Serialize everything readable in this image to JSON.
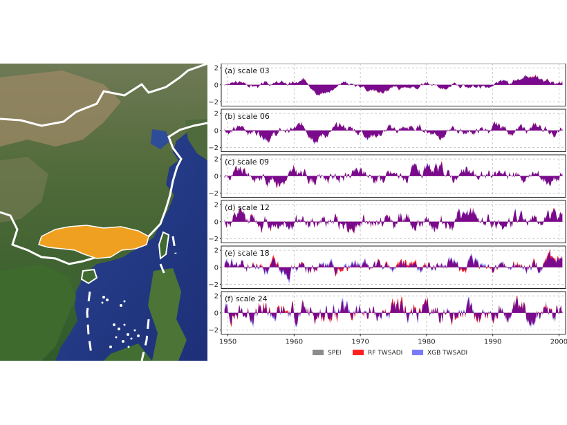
{
  "map": {
    "region_color": "#f0a020",
    "land_color": "#4c6e3a",
    "desert_color": "#8a7a5c",
    "sea_color": "#2a3f8a",
    "boundary_color": "#ffffff"
  },
  "chart_data": [
    {
      "type": "area",
      "label": "(a) scale 03",
      "x_range": [
        1949,
        2001
      ],
      "xticks": [
        1950,
        1960,
        1970,
        1980,
        1990,
        2000
      ],
      "ylim": [
        -2.5,
        2.5
      ],
      "yticks": [
        -2,
        0,
        2
      ],
      "series": [
        {
          "name": "SPEI",
          "color": "#8c8c8c"
        },
        {
          "name": "RF TWSADI",
          "color": "#ff2020"
        },
        {
          "name": "XGB TWSADI",
          "color": "#7a7aff"
        }
      ],
      "overlap_color": "#7a0a8c",
      "smoothness": 0.05,
      "amplitude": 0.65,
      "seed": 3
    },
    {
      "type": "area",
      "label": "(b) scale 06",
      "x_range": [
        1949,
        2001
      ],
      "xticks": [
        1950,
        1960,
        1970,
        1980,
        1990,
        2000
      ],
      "ylim": [
        -2.5,
        2.5
      ],
      "yticks": [
        -2,
        0,
        2
      ],
      "series": [
        {
          "name": "SPEI",
          "color": "#8c8c8c"
        },
        {
          "name": "RF TWSADI",
          "color": "#ff2020"
        },
        {
          "name": "XGB TWSADI",
          "color": "#7a7aff"
        }
      ],
      "overlap_color": "#7a0a8c",
      "smoothness": 0.11,
      "amplitude": 0.75,
      "seed": 6
    },
    {
      "type": "area",
      "label": "(c) scale 09",
      "x_range": [
        1949,
        2001
      ],
      "xticks": [
        1950,
        1960,
        1970,
        1980,
        1990,
        2000
      ],
      "ylim": [
        -2.5,
        2.5
      ],
      "yticks": [
        -2,
        0,
        2
      ],
      "series": [
        {
          "name": "SPEI",
          "color": "#8c8c8c"
        },
        {
          "name": "RF TWSADI",
          "color": "#ff2020"
        },
        {
          "name": "XGB TWSADI",
          "color": "#7a7aff"
        }
      ],
      "overlap_color": "#7a0a8c",
      "smoothness": 0.18,
      "amplitude": 0.8,
      "seed": 9
    },
    {
      "type": "area",
      "label": "(d) scale 12",
      "x_range": [
        1949,
        2001
      ],
      "xticks": [
        1950,
        1960,
        1970,
        1980,
        1990,
        2000
      ],
      "ylim": [
        -2.5,
        2.5
      ],
      "yticks": [
        -2,
        0,
        2
      ],
      "series": [
        {
          "name": "SPEI",
          "color": "#8c8c8c"
        },
        {
          "name": "RF TWSADI",
          "color": "#ff2020"
        },
        {
          "name": "XGB TWSADI",
          "color": "#7a7aff"
        }
      ],
      "overlap_color": "#7a0a8c",
      "smoothness": 0.24,
      "amplitude": 0.85,
      "seed": 12
    },
    {
      "type": "area",
      "label": "(e) scale 18",
      "x_range": [
        1949,
        2001
      ],
      "xticks": [
        1950,
        1960,
        1970,
        1980,
        1990,
        2000
      ],
      "ylim": [
        -2.5,
        2.5
      ],
      "yticks": [
        -2,
        0,
        2
      ],
      "series": [
        {
          "name": "SPEI",
          "color": "#8c8c8c"
        },
        {
          "name": "RF TWSADI",
          "color": "#ff2020"
        },
        {
          "name": "XGB TWSADI",
          "color": "#7a7aff"
        }
      ],
      "overlap_color": "#7a0a8c",
      "smoothness": 0.34,
      "amplitude": 0.95,
      "seed": 18
    },
    {
      "type": "area",
      "label": "(f) scale 24",
      "x_range": [
        1949,
        2001
      ],
      "xticks": [
        1950,
        1960,
        1970,
        1980,
        1990,
        2000
      ],
      "ylim": [
        -2.5,
        2.5
      ],
      "yticks": [
        -2,
        0,
        2
      ],
      "series": [
        {
          "name": "SPEI",
          "color": "#8c8c8c"
        },
        {
          "name": "RF TWSADI",
          "color": "#ff2020"
        },
        {
          "name": "XGB TWSADI",
          "color": "#7a7aff"
        }
      ],
      "overlap_color": "#7a0a8c",
      "smoothness": 0.42,
      "amplitude": 1.0,
      "seed": 24
    }
  ],
  "legend": [
    {
      "label": "SPEI",
      "color": "#8c8c8c"
    },
    {
      "label": "RF TWSADI",
      "color": "#ff2020"
    },
    {
      "label": "XGB TWSADI",
      "color": "#7a7aff"
    }
  ]
}
